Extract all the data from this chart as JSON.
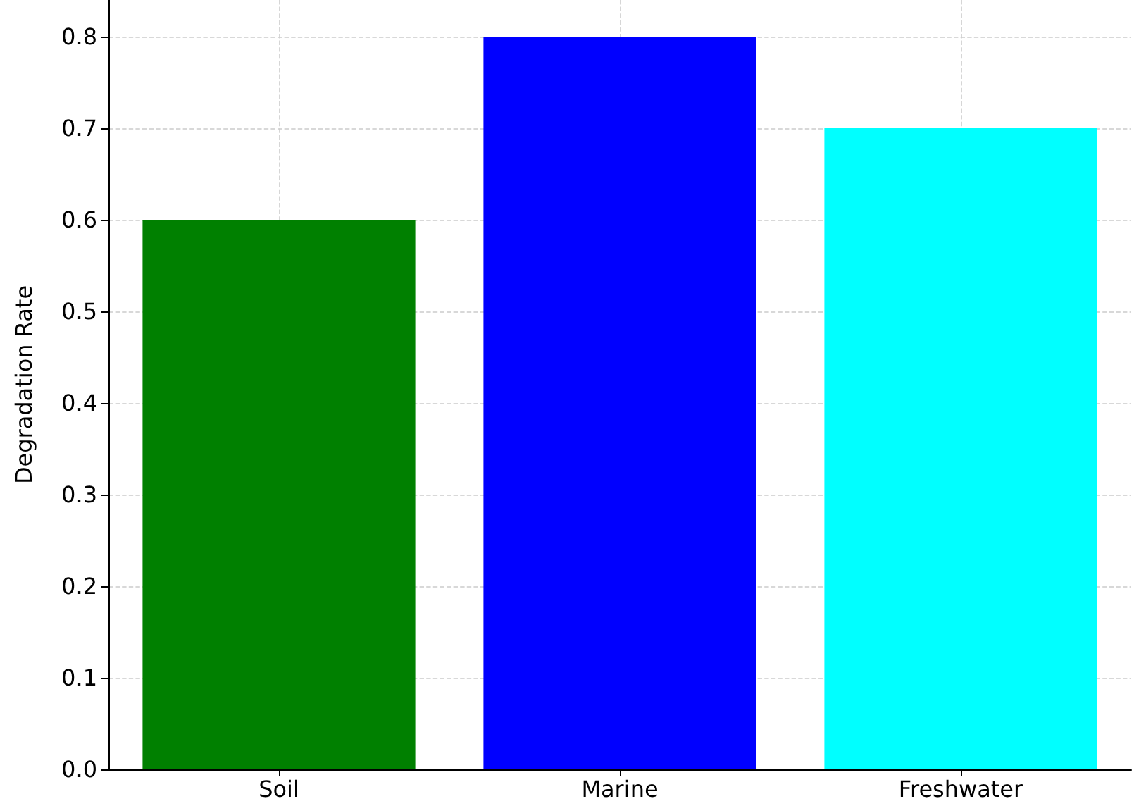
{
  "chart_data": {
    "type": "bar",
    "ylabel": "Degradation Rate",
    "categories": [
      "Soil",
      "Marine",
      "Freshwater"
    ],
    "values": [
      0.6,
      0.8,
      0.7
    ],
    "colors": [
      "#008000",
      "#0000ff",
      "#00ffff"
    ],
    "ylim": [
      0,
      0.84
    ],
    "yticks": [
      {
        "value": 0,
        "label": "0.0"
      },
      0.1,
      0.2,
      0.3,
      0.4,
      0.5,
      0.6,
      0.7,
      0.8
    ],
    "grid": true
  }
}
